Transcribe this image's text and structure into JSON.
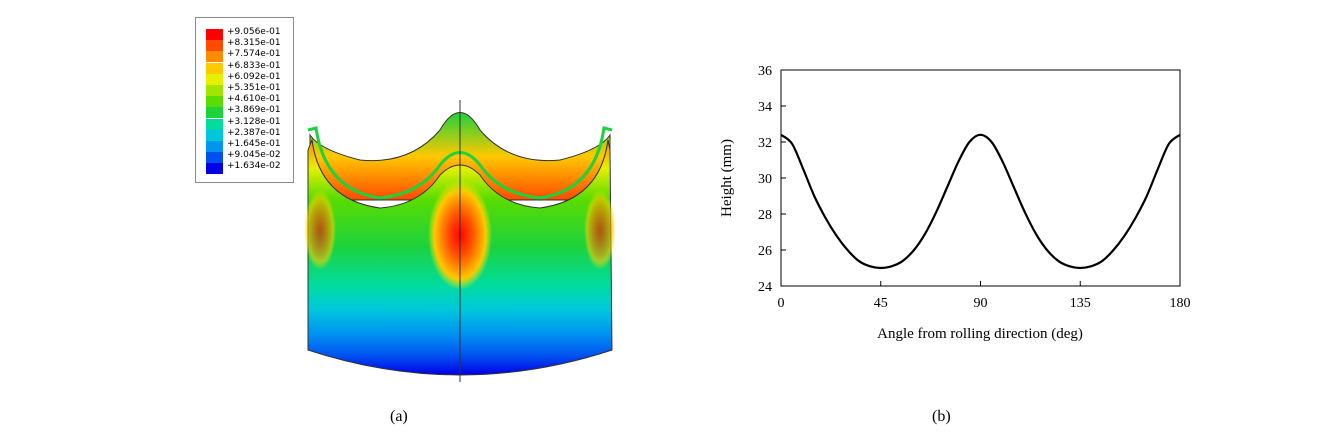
{
  "panel_a": {
    "caption": "(a)",
    "legend": [
      {
        "label": "+9.056e-01",
        "color": "#ff0000"
      },
      {
        "label": "+8.315e-01",
        "color": "#ff4a00"
      },
      {
        "label": "+7.574e-01",
        "color": "#ff8c00"
      },
      {
        "label": "+6.833e-01",
        "color": "#ffc800"
      },
      {
        "label": "+6.092e-01",
        "color": "#e6f000"
      },
      {
        "label": "+5.351e-01",
        "color": "#a0e600"
      },
      {
        "label": "+4.610e-01",
        "color": "#5adc00"
      },
      {
        "label": "+3.869e-01",
        "color": "#1ed23c"
      },
      {
        "label": "+3.128e-01",
        "color": "#00dca0"
      },
      {
        "label": "+2.387e-01",
        "color": "#00c8dc"
      },
      {
        "label": "+1.645e-01",
        "color": "#0096f0"
      },
      {
        "label": "+9.045e-02",
        "color": "#0050f0"
      },
      {
        "label": "+1.634e-02",
        "color": "#0000e6"
      }
    ]
  },
  "panel_b": {
    "caption": "(b)"
  },
  "chart_data": {
    "type": "line",
    "xlabel": "Angle from rolling direction (deg)",
    "ylabel": "Height (mm)",
    "xlim": [
      0,
      180
    ],
    "ylim": [
      24,
      36
    ],
    "xticks": [
      0,
      45,
      90,
      135,
      180
    ],
    "yticks": [
      24,
      26,
      28,
      30,
      32,
      34,
      36
    ],
    "grid": false,
    "series": [
      {
        "x": [
          0,
          5,
          10,
          15,
          20,
          25,
          30,
          35,
          40,
          45,
          50,
          55,
          60,
          65,
          70,
          75,
          80,
          85,
          90,
          95,
          100,
          105,
          110,
          115,
          120,
          125,
          130,
          135,
          140,
          145,
          150,
          155,
          160,
          165,
          170,
          175,
          180
        ],
        "values": [
          32.4,
          31.9,
          30.5,
          29.0,
          27.8,
          26.8,
          26.0,
          25.4,
          25.1,
          25.0,
          25.1,
          25.4,
          26.0,
          26.9,
          28.1,
          29.5,
          30.9,
          32.0,
          32.4,
          32.0,
          30.9,
          29.5,
          28.1,
          26.9,
          26.0,
          25.4,
          25.1,
          25.0,
          25.1,
          25.4,
          26.0,
          26.8,
          27.8,
          29.0,
          30.5,
          31.9,
          32.4
        ],
        "color": "#000000"
      }
    ]
  }
}
